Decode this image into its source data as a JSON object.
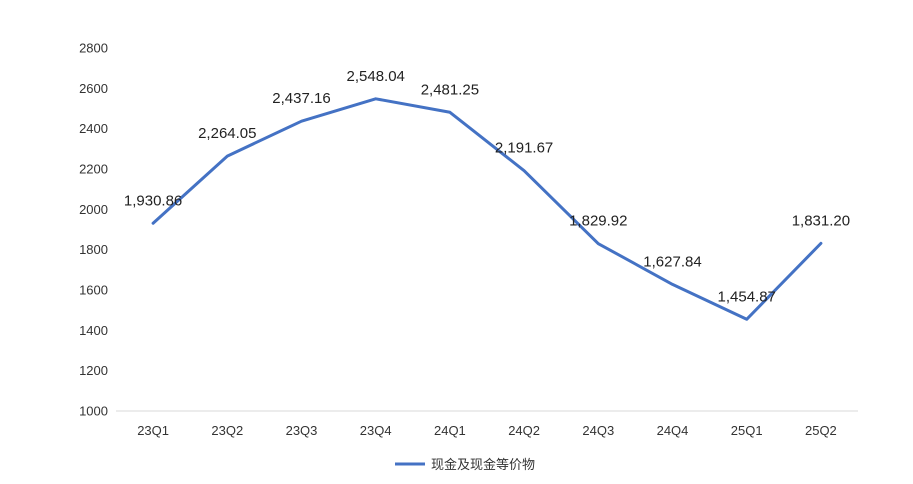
{
  "chart_data": {
    "type": "line",
    "title": "",
    "xlabel": "",
    "ylabel": "",
    "categories": [
      "23Q1",
      "23Q2",
      "23Q3",
      "23Q4",
      "24Q1",
      "24Q2",
      "24Q3",
      "24Q4",
      "25Q1",
      "25Q2"
    ],
    "series": [
      {
        "name": "现金及现金等价物",
        "color": "#4472C4",
        "values": [
          1930.86,
          2264.05,
          2437.16,
          2548.04,
          2481.25,
          2191.67,
          1829.92,
          1627.84,
          1454.87,
          1831.2
        ],
        "labels": [
          "1,930.86",
          "2,264.05",
          "2,437.16",
          "2,548.04",
          "2,481.25",
          "2,191.67",
          "1,829.92",
          "1,627.84",
          "1,454.87",
          "1,831.20"
        ]
      }
    ],
    "ylim": [
      1000,
      2800
    ],
    "yticks": [
      "1000",
      "1200",
      "1400",
      "1600",
      "1800",
      "2000",
      "2200",
      "2400",
      "2600",
      "2800"
    ],
    "grid": false,
    "legend": "bottom",
    "axis_color": "#D9D9D9"
  }
}
